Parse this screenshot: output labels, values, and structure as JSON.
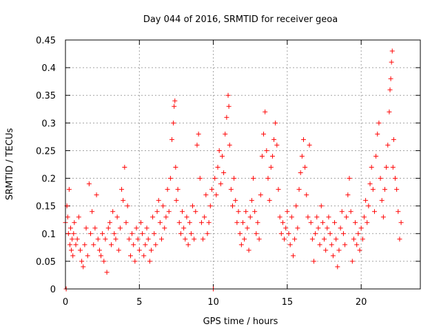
{
  "chart_data": {
    "type": "scatter",
    "title": "Day 044 of 2016, SRMTID for receiver geoa",
    "xlabel": "GPS time / hours",
    "ylabel": "SRMTID / TECUs",
    "xlim": [
      0,
      24
    ],
    "ylim": [
      0,
      0.45
    ],
    "x_ticks": [
      0,
      5,
      10,
      15,
      20
    ],
    "x_tick_labels": [
      "0",
      "5",
      "10",
      "15",
      "20"
    ],
    "y_ticks": [
      0,
      0.05,
      0.1,
      0.15,
      0.2,
      0.25,
      0.3,
      0.35,
      0.4,
      0.45
    ],
    "y_tick_labels": [
      "0",
      "0.05",
      "0.1",
      "0.15",
      "0.2",
      "0.25",
      "0.3",
      "0.35",
      "0.4",
      "0.45"
    ],
    "grid": true,
    "marker": "+",
    "series": [
      {
        "name": "SRMTID",
        "color": "#ff0000",
        "points": [
          [
            0.0,
            0.12
          ],
          [
            0.05,
            0.0
          ],
          [
            0.1,
            0.15
          ],
          [
            0.15,
            0.13
          ],
          [
            0.2,
            0.1
          ],
          [
            0.25,
            0.18
          ],
          [
            0.3,
            0.08
          ],
          [
            0.35,
            0.11
          ],
          [
            0.4,
            0.07
          ],
          [
            0.45,
            0.09
          ],
          [
            0.5,
            0.06
          ],
          [
            0.55,
            0.1
          ],
          [
            0.6,
            0.12
          ],
          [
            0.7,
            0.08
          ],
          [
            0.8,
            0.09
          ],
          [
            0.9,
            0.13
          ],
          [
            1.0,
            0.07
          ],
          [
            1.1,
            0.05
          ],
          [
            1.2,
            0.04
          ],
          [
            1.3,
            0.08
          ],
          [
            1.4,
            0.11
          ],
          [
            1.5,
            0.06
          ],
          [
            1.6,
            0.19
          ],
          [
            1.7,
            0.1
          ],
          [
            1.8,
            0.14
          ],
          [
            1.9,
            0.08
          ],
          [
            2.0,
            0.11
          ],
          [
            2.1,
            0.17
          ],
          [
            2.2,
            0.09
          ],
          [
            2.3,
            0.07
          ],
          [
            2.4,
            0.06
          ],
          [
            2.5,
            0.1
          ],
          [
            2.6,
            0.05
          ],
          [
            2.7,
            0.09
          ],
          [
            2.8,
            0.03
          ],
          [
            2.9,
            0.11
          ],
          [
            3.0,
            0.12
          ],
          [
            3.1,
            0.08
          ],
          [
            3.2,
            0.14
          ],
          [
            3.3,
            0.1
          ],
          [
            3.4,
            0.09
          ],
          [
            3.5,
            0.13
          ],
          [
            3.6,
            0.07
          ],
          [
            3.7,
            0.11
          ],
          [
            3.8,
            0.18
          ],
          [
            3.9,
            0.16
          ],
          [
            4.0,
            0.22
          ],
          [
            4.1,
            0.12
          ],
          [
            4.2,
            0.15
          ],
          [
            4.3,
            0.09
          ],
          [
            4.4,
            0.06
          ],
          [
            4.5,
            0.1
          ],
          [
            4.6,
            0.08
          ],
          [
            4.7,
            0.05
          ],
          [
            4.8,
            0.11
          ],
          [
            4.9,
            0.09
          ],
          [
            5.0,
            0.07
          ],
          [
            5.1,
            0.12
          ],
          [
            5.2,
            0.1
          ],
          [
            5.3,
            0.06
          ],
          [
            5.4,
            0.08
          ],
          [
            5.5,
            0.11
          ],
          [
            5.6,
            0.09
          ],
          [
            5.7,
            0.05
          ],
          [
            5.8,
            0.07
          ],
          [
            5.9,
            0.13
          ],
          [
            6.0,
            0.1
          ],
          [
            6.1,
            0.08
          ],
          [
            6.2,
            0.14
          ],
          [
            6.3,
            0.16
          ],
          [
            6.4,
            0.12
          ],
          [
            6.5,
            0.09
          ],
          [
            6.6,
            0.15
          ],
          [
            6.7,
            0.11
          ],
          [
            6.8,
            0.13
          ],
          [
            6.9,
            0.18
          ],
          [
            7.0,
            0.14
          ],
          [
            7.1,
            0.2
          ],
          [
            7.2,
            0.27
          ],
          [
            7.3,
            0.3
          ],
          [
            7.35,
            0.33
          ],
          [
            7.4,
            0.34
          ],
          [
            7.45,
            0.22
          ],
          [
            7.5,
            0.16
          ],
          [
            7.6,
            0.18
          ],
          [
            7.7,
            0.12
          ],
          [
            7.8,
            0.1
          ],
          [
            7.9,
            0.14
          ],
          [
            8.0,
            0.11
          ],
          [
            8.1,
            0.09
          ],
          [
            8.2,
            0.13
          ],
          [
            8.3,
            0.08
          ],
          [
            8.4,
            0.12
          ],
          [
            8.5,
            0.1
          ],
          [
            8.6,
            0.15
          ],
          [
            8.7,
            0.09
          ],
          [
            8.8,
            0.14
          ],
          [
            8.9,
            0.26
          ],
          [
            9.0,
            0.28
          ],
          [
            9.1,
            0.2
          ],
          [
            9.2,
            0.12
          ],
          [
            9.3,
            0.09
          ],
          [
            9.4,
            0.13
          ],
          [
            9.5,
            0.17
          ],
          [
            9.6,
            0.1
          ],
          [
            9.7,
            0.12
          ],
          [
            9.8,
            0.15
          ],
          [
            9.9,
            0.18
          ],
          [
            10.0,
            0.0
          ],
          [
            10.1,
            0.2
          ],
          [
            10.2,
            0.17
          ],
          [
            10.3,
            0.22
          ],
          [
            10.4,
            0.25
          ],
          [
            10.5,
            0.19
          ],
          [
            10.6,
            0.24
          ],
          [
            10.7,
            0.21
          ],
          [
            10.8,
            0.28
          ],
          [
            10.9,
            0.31
          ],
          [
            11.0,
            0.35
          ],
          [
            11.05,
            0.33
          ],
          [
            11.1,
            0.26
          ],
          [
            11.2,
            0.18
          ],
          [
            11.3,
            0.15
          ],
          [
            11.4,
            0.2
          ],
          [
            11.5,
            0.16
          ],
          [
            11.6,
            0.12
          ],
          [
            11.7,
            0.14
          ],
          [
            11.8,
            0.1
          ],
          [
            11.9,
            0.08
          ],
          [
            12.0,
            0.12
          ],
          [
            12.1,
            0.09
          ],
          [
            12.2,
            0.14
          ],
          [
            12.3,
            0.11
          ],
          [
            12.4,
            0.07
          ],
          [
            12.5,
            0.13
          ],
          [
            12.6,
            0.16
          ],
          [
            12.7,
            0.2
          ],
          [
            12.8,
            0.14
          ],
          [
            12.9,
            0.1
          ],
          [
            13.0,
            0.12
          ],
          [
            13.1,
            0.09
          ],
          [
            13.2,
            0.17
          ],
          [
            13.3,
            0.24
          ],
          [
            13.4,
            0.28
          ],
          [
            13.5,
            0.32
          ],
          [
            13.6,
            0.25
          ],
          [
            13.7,
            0.2
          ],
          [
            13.8,
            0.16
          ],
          [
            13.9,
            0.22
          ],
          [
            14.0,
            0.24
          ],
          [
            14.1,
            0.27
          ],
          [
            14.2,
            0.3
          ],
          [
            14.3,
            0.26
          ],
          [
            14.4,
            0.18
          ],
          [
            14.5,
            0.13
          ],
          [
            14.6,
            0.1
          ],
          [
            14.7,
            0.12
          ],
          [
            14.8,
            0.09
          ],
          [
            14.9,
            0.11
          ],
          [
            15.0,
            0.14
          ],
          [
            15.1,
            0.1
          ],
          [
            15.2,
            0.08
          ],
          [
            15.3,
            0.13
          ],
          [
            15.4,
            0.06
          ],
          [
            15.5,
            0.09
          ],
          [
            15.6,
            0.15
          ],
          [
            15.7,
            0.11
          ],
          [
            15.8,
            0.18
          ],
          [
            15.9,
            0.21
          ],
          [
            16.0,
            0.24
          ],
          [
            16.1,
            0.27
          ],
          [
            16.2,
            0.22
          ],
          [
            16.3,
            0.17
          ],
          [
            16.4,
            0.13
          ],
          [
            16.5,
            0.26
          ],
          [
            16.6,
            0.12
          ],
          [
            16.7,
            0.09
          ],
          [
            16.8,
            0.05
          ],
          [
            16.9,
            0.1
          ],
          [
            17.0,
            0.13
          ],
          [
            17.1,
            0.11
          ],
          [
            17.2,
            0.08
          ],
          [
            17.3,
            0.15
          ],
          [
            17.4,
            0.12
          ],
          [
            17.5,
            0.09
          ],
          [
            17.6,
            0.07
          ],
          [
            17.7,
            0.11
          ],
          [
            17.8,
            0.13
          ],
          [
            17.9,
            0.1
          ],
          [
            18.0,
            0.08
          ],
          [
            18.1,
            0.06
          ],
          [
            18.2,
            0.12
          ],
          [
            18.3,
            0.09
          ],
          [
            18.4,
            0.04
          ],
          [
            18.5,
            0.07
          ],
          [
            18.6,
            0.11
          ],
          [
            18.7,
            0.14
          ],
          [
            18.8,
            0.1
          ],
          [
            18.9,
            0.08
          ],
          [
            19.0,
            0.13
          ],
          [
            19.1,
            0.17
          ],
          [
            19.2,
            0.2
          ],
          [
            19.3,
            0.14
          ],
          [
            19.4,
            0.05
          ],
          [
            19.5,
            0.09
          ],
          [
            19.6,
            0.12
          ],
          [
            19.7,
            0.08
          ],
          [
            19.8,
            0.1
          ],
          [
            19.9,
            0.07
          ],
          [
            20.0,
            0.11
          ],
          [
            20.1,
            0.09
          ],
          [
            20.2,
            0.13
          ],
          [
            20.3,
            0.16
          ],
          [
            20.4,
            0.12
          ],
          [
            20.5,
            0.15
          ],
          [
            20.6,
            0.19
          ],
          [
            20.7,
            0.22
          ],
          [
            20.8,
            0.18
          ],
          [
            20.9,
            0.14
          ],
          [
            21.0,
            0.24
          ],
          [
            21.1,
            0.28
          ],
          [
            21.2,
            0.3
          ],
          [
            21.3,
            0.2
          ],
          [
            21.4,
            0.16
          ],
          [
            21.5,
            0.13
          ],
          [
            21.6,
            0.18
          ],
          [
            21.7,
            0.22
          ],
          [
            21.8,
            0.26
          ],
          [
            21.9,
            0.32
          ],
          [
            21.95,
            0.36
          ],
          [
            22.0,
            0.38
          ],
          [
            22.05,
            0.41
          ],
          [
            22.1,
            0.43
          ],
          [
            22.15,
            0.22
          ],
          [
            22.2,
            0.27
          ],
          [
            22.3,
            0.2
          ],
          [
            22.4,
            0.18
          ],
          [
            22.5,
            0.14
          ],
          [
            22.6,
            0.09
          ],
          [
            22.7,
            0.12
          ]
        ]
      }
    ]
  }
}
